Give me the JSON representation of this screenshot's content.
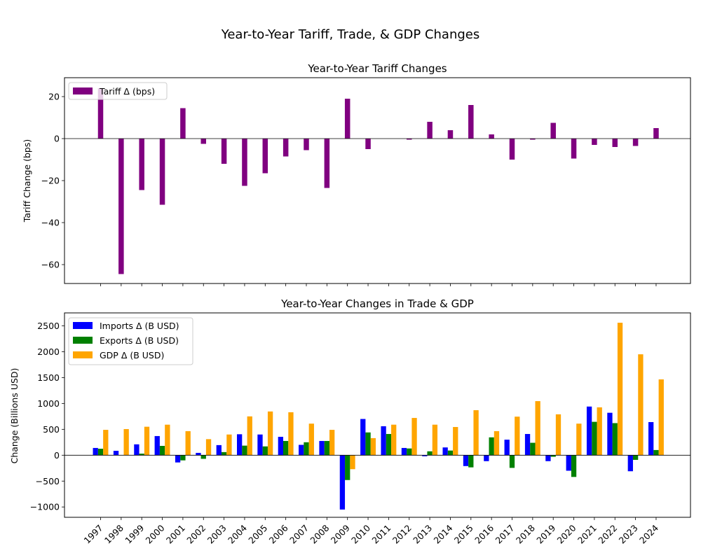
{
  "figure": {
    "title": "Year-to-Year Tariff, Trade, & GDP Changes"
  },
  "years": [
    "1997",
    "1998",
    "1999",
    "2000",
    "2001",
    "2002",
    "2003",
    "2004",
    "2005",
    "2006",
    "2007",
    "2008",
    "2009",
    "2010",
    "2011",
    "2012",
    "2013",
    "2014",
    "2015",
    "2016",
    "2017",
    "2018",
    "2019",
    "2020",
    "2021",
    "2022",
    "2023",
    "2024"
  ],
  "chart_data": [
    {
      "type": "bar",
      "title": "Year-to-Year Tariff Changes",
      "xlabel": "",
      "ylabel": "Tariff Change (bps)",
      "ylim": [
        -69,
        29
      ],
      "yticks": [
        20,
        0,
        -20,
        -40,
        -60
      ],
      "grid": false,
      "legend": "top-left",
      "categories": [
        "1997",
        "1998",
        "1999",
        "2000",
        "2001",
        "2002",
        "2003",
        "2004",
        "2005",
        "2006",
        "2007",
        "2008",
        "2009",
        "2010",
        "2011",
        "2012",
        "2013",
        "2014",
        "2015",
        "2016",
        "2017",
        "2018",
        "2019",
        "2020",
        "2021",
        "2022",
        "2023",
        "2024"
      ],
      "series": [
        {
          "name": "Tariff Δ (bps)",
          "color": "#800080",
          "values": [
            24,
            -64.5,
            -24.5,
            -31.5,
            14.5,
            -2.5,
            -12,
            -22.5,
            -16.5,
            -8.5,
            -5.5,
            -23.5,
            19,
            -5,
            0,
            -0.5,
            8,
            4,
            16,
            2,
            -10,
            -0.5,
            7.5,
            -9.5,
            -3,
            -4,
            -3.5,
            5
          ]
        }
      ]
    },
    {
      "type": "bar",
      "title": "Year-to-Year Changes in Trade & GDP",
      "xlabel": "",
      "ylabel": "Change (Billions USD)",
      "ylim": [
        -1200,
        2750
      ],
      "yticks": [
        2500,
        2000,
        1500,
        1000,
        500,
        0,
        -500,
        -1000
      ],
      "grid": false,
      "legend": "top-left",
      "categories": [
        "1997",
        "1998",
        "1999",
        "2000",
        "2001",
        "2002",
        "2003",
        "2004",
        "2005",
        "2006",
        "2007",
        "2008",
        "2009",
        "2010",
        "2011",
        "2012",
        "2013",
        "2014",
        "2015",
        "2016",
        "2017",
        "2018",
        "2019",
        "2020",
        "2021",
        "2022",
        "2023",
        "2024"
      ],
      "series": [
        {
          "name": "Imports Δ (B USD)",
          "color": "#0000ff",
          "values": [
            140,
            85,
            210,
            370,
            -140,
            45,
            195,
            405,
            400,
            355,
            200,
            275,
            -1050,
            700,
            560,
            140,
            -20,
            150,
            -210,
            -115,
            300,
            410,
            -115,
            -300,
            940,
            820,
            -310,
            640
          ]
        },
        {
          "name": "Exports Δ (B USD)",
          "color": "#008000",
          "values": [
            125,
            0,
            30,
            180,
            -100,
            -70,
            60,
            185,
            170,
            275,
            250,
            275,
            -480,
            440,
            410,
            130,
            75,
            90,
            -235,
            345,
            -245,
            240,
            -30,
            -420,
            645,
            620,
            -90,
            100
          ]
        },
        {
          "name": "GDP Δ (B USD)",
          "color": "#ffa500",
          "values": [
            490,
            505,
            550,
            590,
            465,
            310,
            400,
            750,
            845,
            830,
            610,
            490,
            -270,
            330,
            590,
            720,
            590,
            545,
            870,
            465,
            745,
            1045,
            790,
            610,
            925,
            2560,
            1950,
            1465
          ]
        }
      ]
    }
  ]
}
